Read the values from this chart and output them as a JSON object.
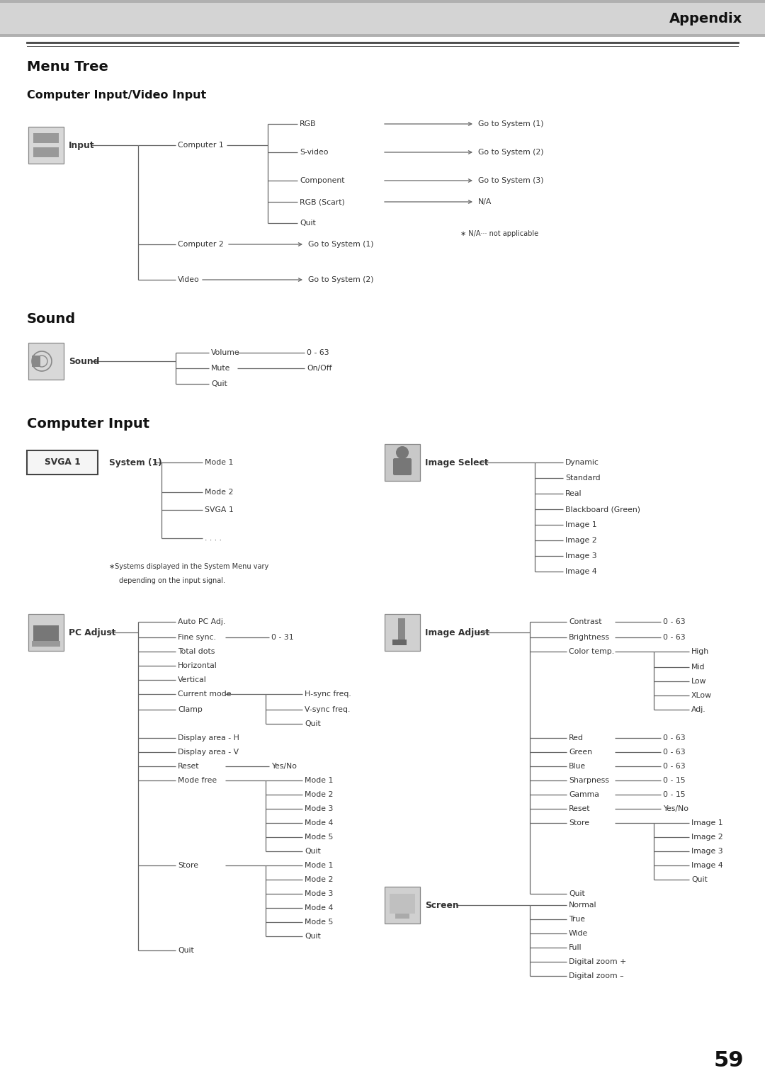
{
  "bg_color": "#ffffff",
  "line_color": "#666666",
  "text_color": "#333333",
  "header_text": "Appendix",
  "title": "Menu Tree",
  "sub1": "Computer Input/Video Input",
  "sub2": "Sound",
  "sub3": "Computer Input",
  "page_num": "59"
}
